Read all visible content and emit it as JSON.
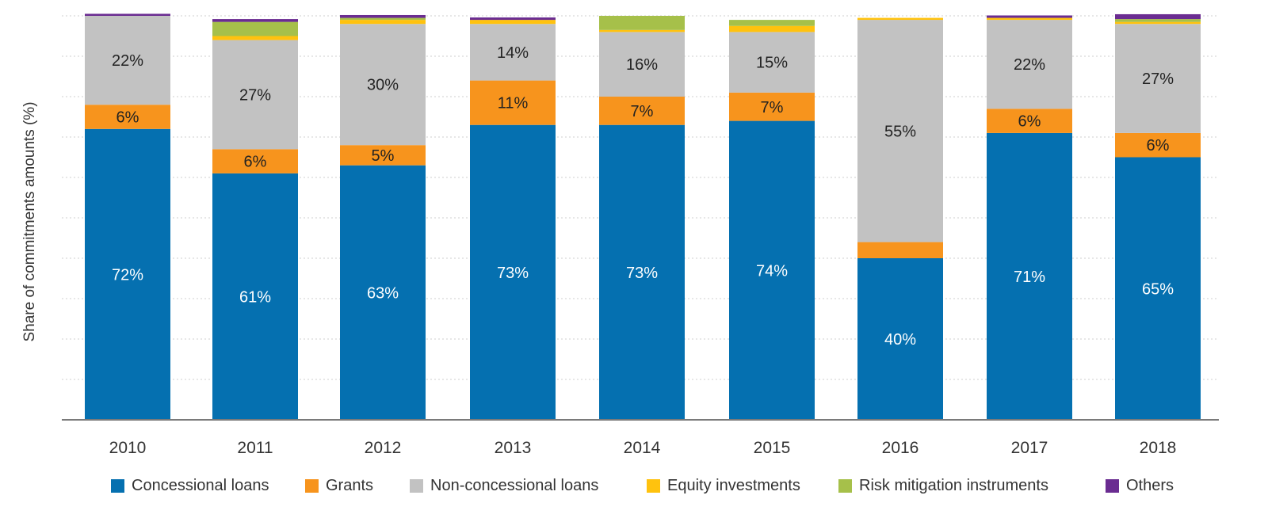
{
  "chart_data": {
    "type": "bar",
    "stacked": true,
    "title": "",
    "xlabel": "",
    "ylabel": "Share of commitments amounts (%)",
    "ylim": [
      0,
      100
    ],
    "grid": "horizontal dotted",
    "legend_position": "bottom",
    "categories": [
      "2010",
      "2011",
      "2012",
      "2013",
      "2014",
      "2015",
      "2016",
      "2017",
      "2018"
    ],
    "series": [
      {
        "name": "Concessional loans",
        "color": "#0570b0",
        "label_color": "#ffffff",
        "values": [
          72,
          61,
          63,
          73,
          73,
          74,
          40,
          71,
          65
        ],
        "labels": [
          "72%",
          "61%",
          "63%",
          "73%",
          "73%",
          "74%",
          "40%",
          "71%",
          "65%"
        ]
      },
      {
        "name": "Grants",
        "color": "#f7941d",
        "label_color": "#222222",
        "values": [
          6,
          6,
          5,
          11,
          7,
          7,
          4,
          6,
          6
        ],
        "labels": [
          "6%",
          "6%",
          "5%",
          "11%",
          "7%",
          "7%",
          "",
          "6%",
          "6%"
        ]
      },
      {
        "name": "Non-concessional loans",
        "color": "#c2c2c2",
        "label_color": "#222222",
        "values": [
          22,
          27,
          30,
          14,
          16,
          15,
          55,
          22,
          27
        ],
        "labels": [
          "22%",
          "27%",
          "30%",
          "14%",
          "16%",
          "15%",
          "55%",
          "22%",
          "27%"
        ]
      },
      {
        "name": "Equity investments",
        "color": "#ffc20e",
        "label_color": "#222222",
        "values": [
          0,
          1,
          1,
          1,
          0.5,
          1.5,
          0.5,
          0.5,
          0.5
        ],
        "labels": [
          "",
          "",
          "",
          "",
          "",
          "",
          "",
          "",
          ""
        ]
      },
      {
        "name": "Risk mitigation instruments",
        "color": "#a6c04a",
        "label_color": "#222222",
        "values": [
          0,
          3.5,
          0.5,
          0,
          3.5,
          1.5,
          0,
          0,
          0.7
        ],
        "labels": [
          "",
          "",
          "",
          "",
          "",
          "",
          "",
          "",
          ""
        ]
      },
      {
        "name": "Others",
        "color": "#6a2c91",
        "label_color": "#222222",
        "values": [
          0.5,
          0.7,
          0.7,
          0.6,
          0,
          0,
          0,
          0.6,
          1.2
        ],
        "labels": [
          "",
          "",
          "",
          "",
          "",
          "",
          "",
          "",
          ""
        ]
      }
    ]
  }
}
